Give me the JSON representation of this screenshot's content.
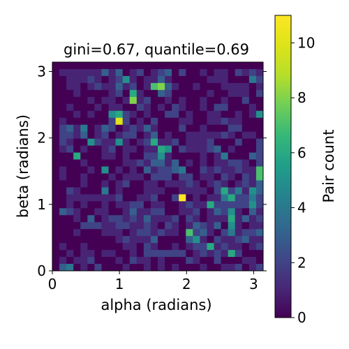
{
  "chart_data": {
    "type": "heatmap",
    "title": "gini=0.67, quantile=0.69",
    "xlabel": "alpha (radians)",
    "ylabel": "beta (radians)",
    "colorbar_label": "Pair count",
    "xlim": [
      0,
      3.1416
    ],
    "ylim": [
      0,
      3.1416
    ],
    "xticks": [
      "0",
      "1",
      "2",
      "3"
    ],
    "yticks": [
      "0",
      "1",
      "2",
      "3"
    ],
    "colorbar_ticks": [
      "0",
      "2",
      "4",
      "6",
      "8",
      "10"
    ],
    "vmin": 0,
    "vmax": 11,
    "colormap": "viridis",
    "grid_size": [
      30,
      30
    ],
    "cells_note": "rows listed from top (beta near pi) to bottom (beta near 0); columns alpha 0 to pi",
    "cells": [
      [
        0,
        0,
        0,
        0,
        0,
        0,
        0,
        0,
        0,
        0,
        0,
        0,
        0,
        0,
        0,
        0,
        0,
        0,
        0,
        0,
        0,
        0,
        0,
        0,
        0,
        0,
        0,
        0,
        0,
        0
      ],
      [
        0,
        1,
        1,
        1,
        1,
        1,
        1,
        3,
        1,
        3,
        0,
        1,
        2,
        0,
        1,
        2,
        3,
        0,
        2,
        0,
        0,
        1,
        0,
        1,
        1,
        0,
        2,
        1,
        2,
        1
      ],
      [
        0,
        0,
        1,
        1,
        1,
        2,
        1,
        0,
        1,
        2,
        5,
        1,
        0,
        1,
        1,
        3,
        1,
        0,
        0,
        0,
        0,
        0,
        1,
        1,
        1,
        0,
        0,
        0,
        4,
        2
      ],
      [
        0,
        0,
        1,
        1,
        0,
        1,
        2,
        1,
        1,
        3,
        1,
        2,
        0,
        1,
        7,
        8,
        3,
        1,
        0,
        0,
        1,
        0,
        0,
        0,
        1,
        1,
        1,
        1,
        0,
        1
      ],
      [
        0,
        0,
        0,
        1,
        0,
        0,
        0,
        0,
        1,
        2,
        0,
        6,
        1,
        0,
        0,
        3,
        2,
        0,
        0,
        0,
        0,
        0,
        1,
        0,
        0,
        1,
        1,
        1,
        0,
        2
      ],
      [
        0,
        0,
        0,
        0,
        0,
        1,
        0,
        1,
        1,
        0,
        1,
        8,
        1,
        2,
        0,
        0,
        1,
        0,
        1,
        0,
        0,
        1,
        0,
        0,
        1,
        0,
        0,
        2,
        0,
        0
      ],
      [
        0,
        0,
        1,
        0,
        0,
        0,
        1,
        0,
        1,
        1,
        0,
        0,
        2,
        1,
        0,
        1,
        0,
        2,
        1,
        0,
        0,
        1,
        0,
        2,
        2,
        0,
        0,
        0,
        1,
        0
      ],
      [
        0,
        0,
        0,
        1,
        0,
        1,
        0,
        0,
        5,
        6,
        2,
        1,
        0,
        1,
        0,
        0,
        2,
        2,
        0,
        1,
        0,
        0,
        1,
        1,
        0,
        0,
        1,
        0,
        1,
        5
      ],
      [
        0,
        1,
        0,
        0,
        0,
        0,
        0,
        0,
        2,
        10,
        2,
        0,
        1,
        0,
        2,
        0,
        0,
        0,
        1,
        1,
        0,
        0,
        1,
        1,
        2,
        1,
        1,
        0,
        0,
        0
      ],
      [
        0,
        2,
        3,
        1,
        4,
        0,
        1,
        3,
        2,
        0,
        1,
        2,
        1,
        3,
        1,
        0,
        0,
        0,
        2,
        0,
        0,
        1,
        0,
        0,
        0,
        2,
        2,
        0,
        0,
        0
      ],
      [
        0,
        2,
        2,
        1,
        3,
        0,
        1,
        2,
        0,
        1,
        2,
        2,
        0,
        1,
        3,
        0,
        1,
        0,
        0,
        1,
        1,
        1,
        1,
        1,
        2,
        1,
        0,
        1,
        1,
        0
      ],
      [
        0,
        2,
        1,
        0,
        0,
        5,
        2,
        1,
        1,
        5,
        1,
        0,
        1,
        2,
        6,
        1,
        1,
        2,
        0,
        1,
        1,
        1,
        2,
        0,
        0,
        0,
        2,
        0,
        0,
        2
      ],
      [
        0,
        1,
        2,
        0,
        1,
        0,
        0,
        1,
        2,
        0,
        1,
        1,
        0,
        1,
        1,
        6,
        5,
        0,
        2,
        1,
        1,
        1,
        2,
        3,
        0,
        1,
        0,
        0,
        0,
        2
      ],
      [
        0,
        0,
        0,
        6,
        0,
        0,
        0,
        1,
        1,
        0,
        1,
        0,
        0,
        2,
        2,
        5,
        1,
        0,
        0,
        0,
        0,
        1,
        0,
        1,
        4,
        0,
        0,
        0,
        3,
        2
      ],
      [
        0,
        0,
        0,
        0,
        1,
        0,
        0,
        0,
        0,
        0,
        1,
        1,
        2,
        1,
        3,
        3,
        1,
        3,
        0,
        1,
        0,
        1,
        0,
        1,
        1,
        2,
        2,
        1,
        0,
        2
      ],
      [
        0,
        1,
        0,
        0,
        0,
        1,
        0,
        5,
        0,
        1,
        0,
        1,
        0,
        3,
        1,
        2,
        2,
        3,
        4,
        0,
        0,
        2,
        1,
        2,
        1,
        1,
        2,
        1,
        1,
        7
      ],
      [
        0,
        1,
        0,
        0,
        1,
        0,
        0,
        0,
        1,
        0,
        1,
        1,
        1,
        0,
        2,
        2,
        2,
        0,
        2,
        2,
        0,
        1,
        1,
        0,
        2,
        1,
        0,
        2,
        1,
        7
      ],
      [
        0,
        0,
        0,
        0,
        1,
        0,
        0,
        1,
        0,
        1,
        2,
        0,
        0,
        1,
        1,
        0,
        1,
        1,
        1,
        2,
        1,
        0,
        1,
        2,
        1,
        0,
        1,
        2,
        1,
        3
      ],
      [
        0,
        0,
        2,
        1,
        0,
        0,
        0,
        4,
        0,
        1,
        0,
        0,
        0,
        1,
        1,
        1,
        0,
        0,
        1,
        1,
        1,
        1,
        0,
        2,
        6,
        2,
        4,
        1,
        5,
        3
      ],
      [
        0,
        0,
        1,
        1,
        1,
        1,
        1,
        1,
        1,
        2,
        0,
        0,
        1,
        1,
        2,
        0,
        0,
        2,
        11,
        0,
        1,
        0,
        1,
        1,
        4,
        6,
        2,
        2,
        4,
        2
      ],
      [
        0,
        0,
        1,
        0,
        1,
        0,
        0,
        1,
        0,
        1,
        1,
        2,
        2,
        0,
        1,
        1,
        0,
        0,
        1,
        2,
        1,
        1,
        6,
        2,
        2,
        2,
        2,
        2,
        5,
        2
      ],
      [
        0,
        3,
        2,
        1,
        0,
        0,
        1,
        1,
        0,
        0,
        1,
        3,
        1,
        1,
        2,
        2,
        0,
        0,
        1,
        1,
        2,
        0,
        1,
        3,
        2,
        5,
        1,
        0,
        3,
        1
      ],
      [
        0,
        0,
        0,
        1,
        0,
        3,
        0,
        1,
        2,
        2,
        1,
        2,
        1,
        3,
        1,
        1,
        1,
        2,
        0,
        2,
        1,
        0,
        1,
        1,
        1,
        6,
        1,
        3,
        1,
        2
      ],
      [
        0,
        0,
        0,
        0,
        2,
        2,
        2,
        1,
        1,
        2,
        2,
        1,
        1,
        2,
        1,
        0,
        2,
        1,
        0,
        1,
        3,
        2,
        1,
        3,
        0,
        5,
        1,
        0,
        1,
        1
      ],
      [
        0,
        0,
        0,
        1,
        0,
        0,
        0,
        1,
        1,
        1,
        0,
        1,
        2,
        2,
        1,
        2,
        1,
        1,
        0,
        7,
        2,
        3,
        1,
        0,
        2,
        4,
        1,
        2,
        2,
        3
      ],
      [
        0,
        0,
        0,
        0,
        0,
        0,
        0,
        0,
        0,
        1,
        2,
        1,
        1,
        1,
        3,
        0,
        0,
        0,
        0,
        3,
        5,
        1,
        0,
        2,
        1,
        1,
        2,
        3,
        1,
        1
      ],
      [
        0,
        1,
        0,
        0,
        1,
        0,
        0,
        0,
        0,
        0,
        1,
        1,
        0,
        2,
        1,
        0,
        0,
        1,
        0,
        1,
        2,
        2,
        6,
        1,
        2,
        1,
        1,
        0,
        1,
        2
      ],
      [
        0,
        0,
        1,
        0,
        1,
        1,
        0,
        1,
        1,
        0,
        0,
        1,
        0,
        2,
        2,
        2,
        2,
        2,
        2,
        0,
        1,
        2,
        1,
        2,
        1,
        6,
        2,
        0,
        0,
        0
      ],
      [
        0,
        1,
        0,
        1,
        1,
        2,
        0,
        0,
        0,
        1,
        0,
        2,
        1,
        1,
        0,
        1,
        0,
        0,
        0,
        2,
        1,
        0,
        0,
        2,
        0,
        0,
        0,
        1,
        1,
        0
      ],
      [
        0,
        3,
        4,
        0,
        1,
        0,
        2,
        0,
        0,
        0,
        1,
        0,
        0,
        1,
        0,
        1,
        0,
        1,
        0,
        0,
        0,
        1,
        0,
        0,
        1,
        1,
        2,
        0,
        1,
        2
      ]
    ]
  }
}
